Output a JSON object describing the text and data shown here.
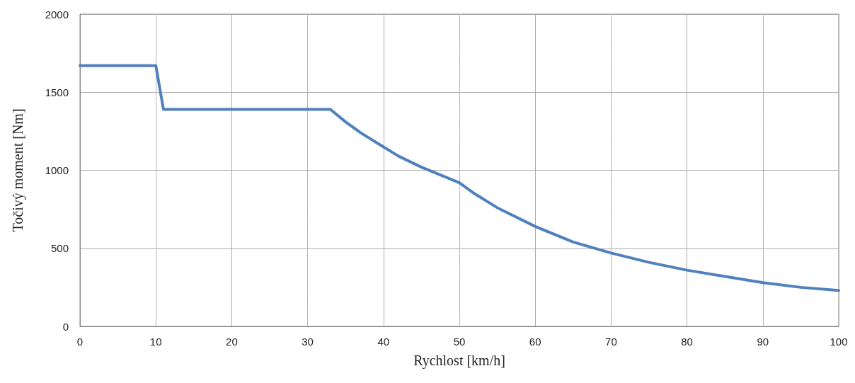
{
  "chart_data": {
    "type": "line",
    "xlabel": "Rychlost [km/h]",
    "ylabel": "Točivý moment [Nm]",
    "series": [
      {
        "color": "#4f81bd",
        "x": [
          0,
          10,
          11,
          33,
          35,
          37,
          40,
          42,
          45,
          47,
          50,
          52,
          55,
          60,
          65,
          70,
          75,
          80,
          85,
          90,
          95,
          100
        ],
        "values": [
          1670,
          1670,
          1390,
          1390,
          1310,
          1240,
          1150,
          1090,
          1020,
          980,
          920,
          850,
          760,
          640,
          540,
          470,
          410,
          360,
          320,
          280,
          250,
          230
        ]
      }
    ],
    "xlim": [
      0,
      100
    ],
    "xticks": [
      0,
      10,
      20,
      30,
      40,
      50,
      60,
      70,
      80,
      90,
      100
    ],
    "ylim": [
      0,
      2000
    ],
    "yticks": [
      0,
      500,
      1000,
      1500,
      2000
    ],
    "grid": true,
    "marker": "none",
    "line_style": "solid"
  }
}
